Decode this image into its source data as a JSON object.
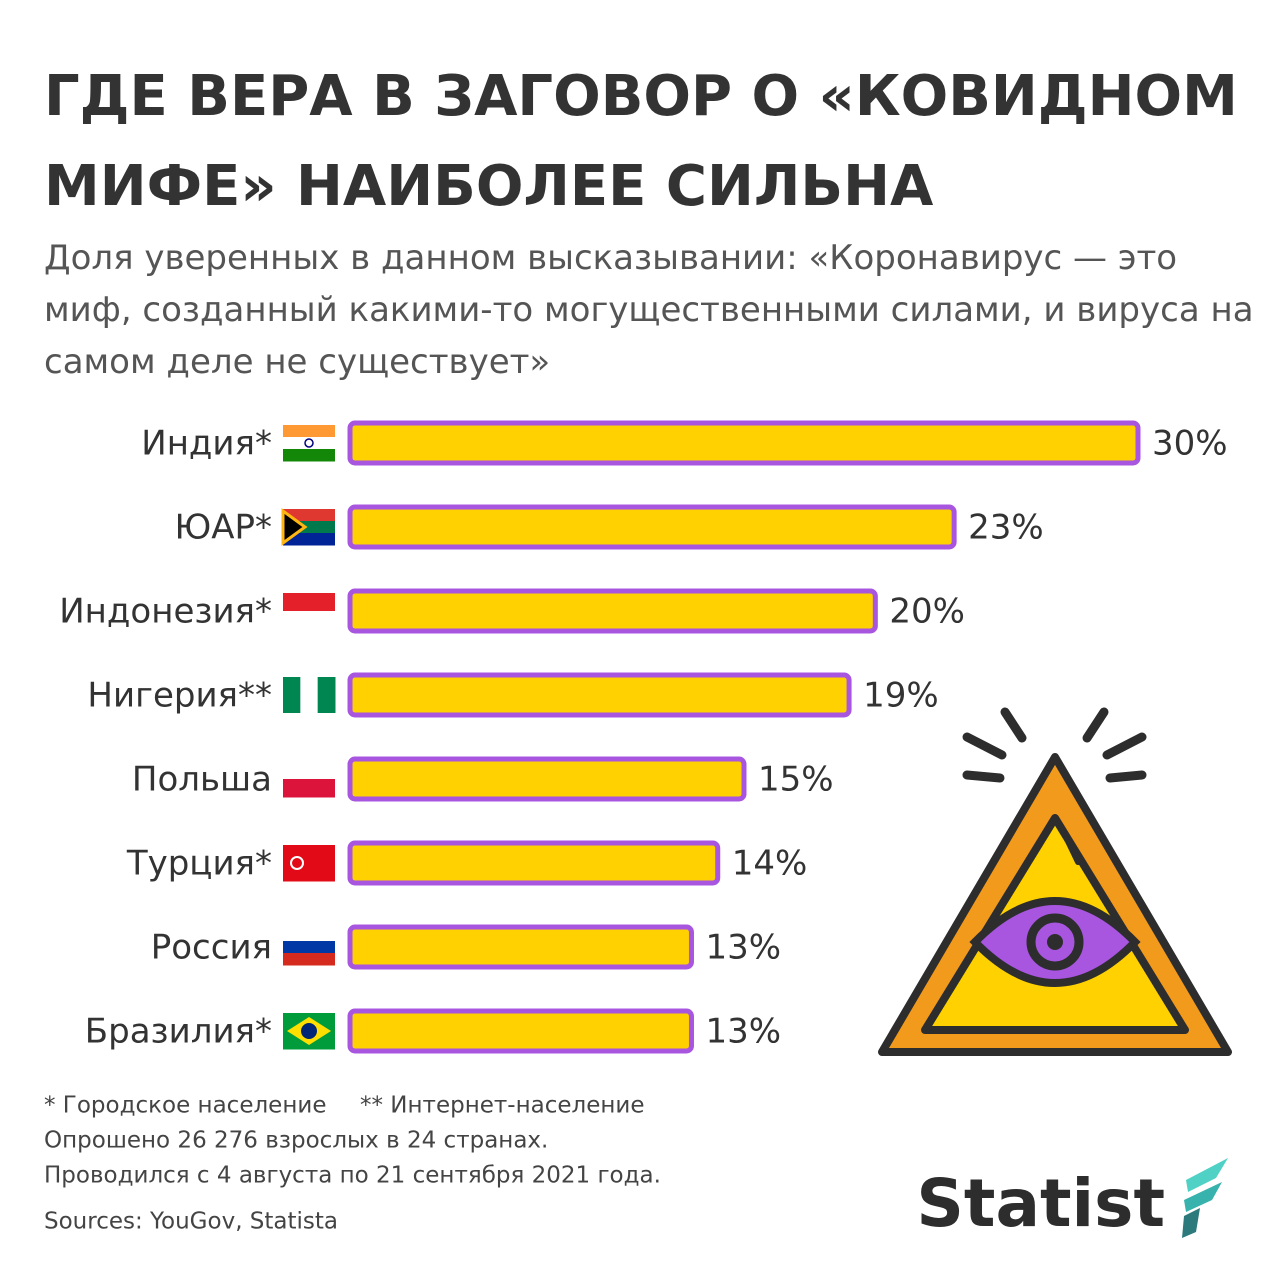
{
  "chart_data": {
    "type": "bar",
    "title": "ГДЕ ВЕРА В ЗАГОВОР О «КОВИДНОМ МИФЕ» НАИБОЛЕЕ СИЛЬНА",
    "subtitle": "Доля уверенных в данном высказывании: «Коронавирус — это миф, созданный какими-то могущественными силами, и вируса на самом деле не существует»",
    "categories": [
      "Индия*",
      "ЮАР*",
      "Индонезия*",
      "Нигерия**",
      "Польша",
      "Турция*",
      "Россия",
      "Бразилия*"
    ],
    "values": [
      30,
      23,
      20,
      19,
      15,
      14,
      13,
      13
    ],
    "value_labels": [
      "30%",
      "23%",
      "20%",
      "19%",
      "15%",
      "14%",
      "13%",
      "13%"
    ],
    "color": "#ffd100",
    "notes": [
      "* Городское население",
      "** Интернет-население",
      "Опрошено 26 276 взрослых в 24 странах.",
      "Проводился с 4 августа по 21 сентября 2021 года."
    ],
    "source": "Sources: YouGov, Statista",
    "logo": "Statist"
  }
}
